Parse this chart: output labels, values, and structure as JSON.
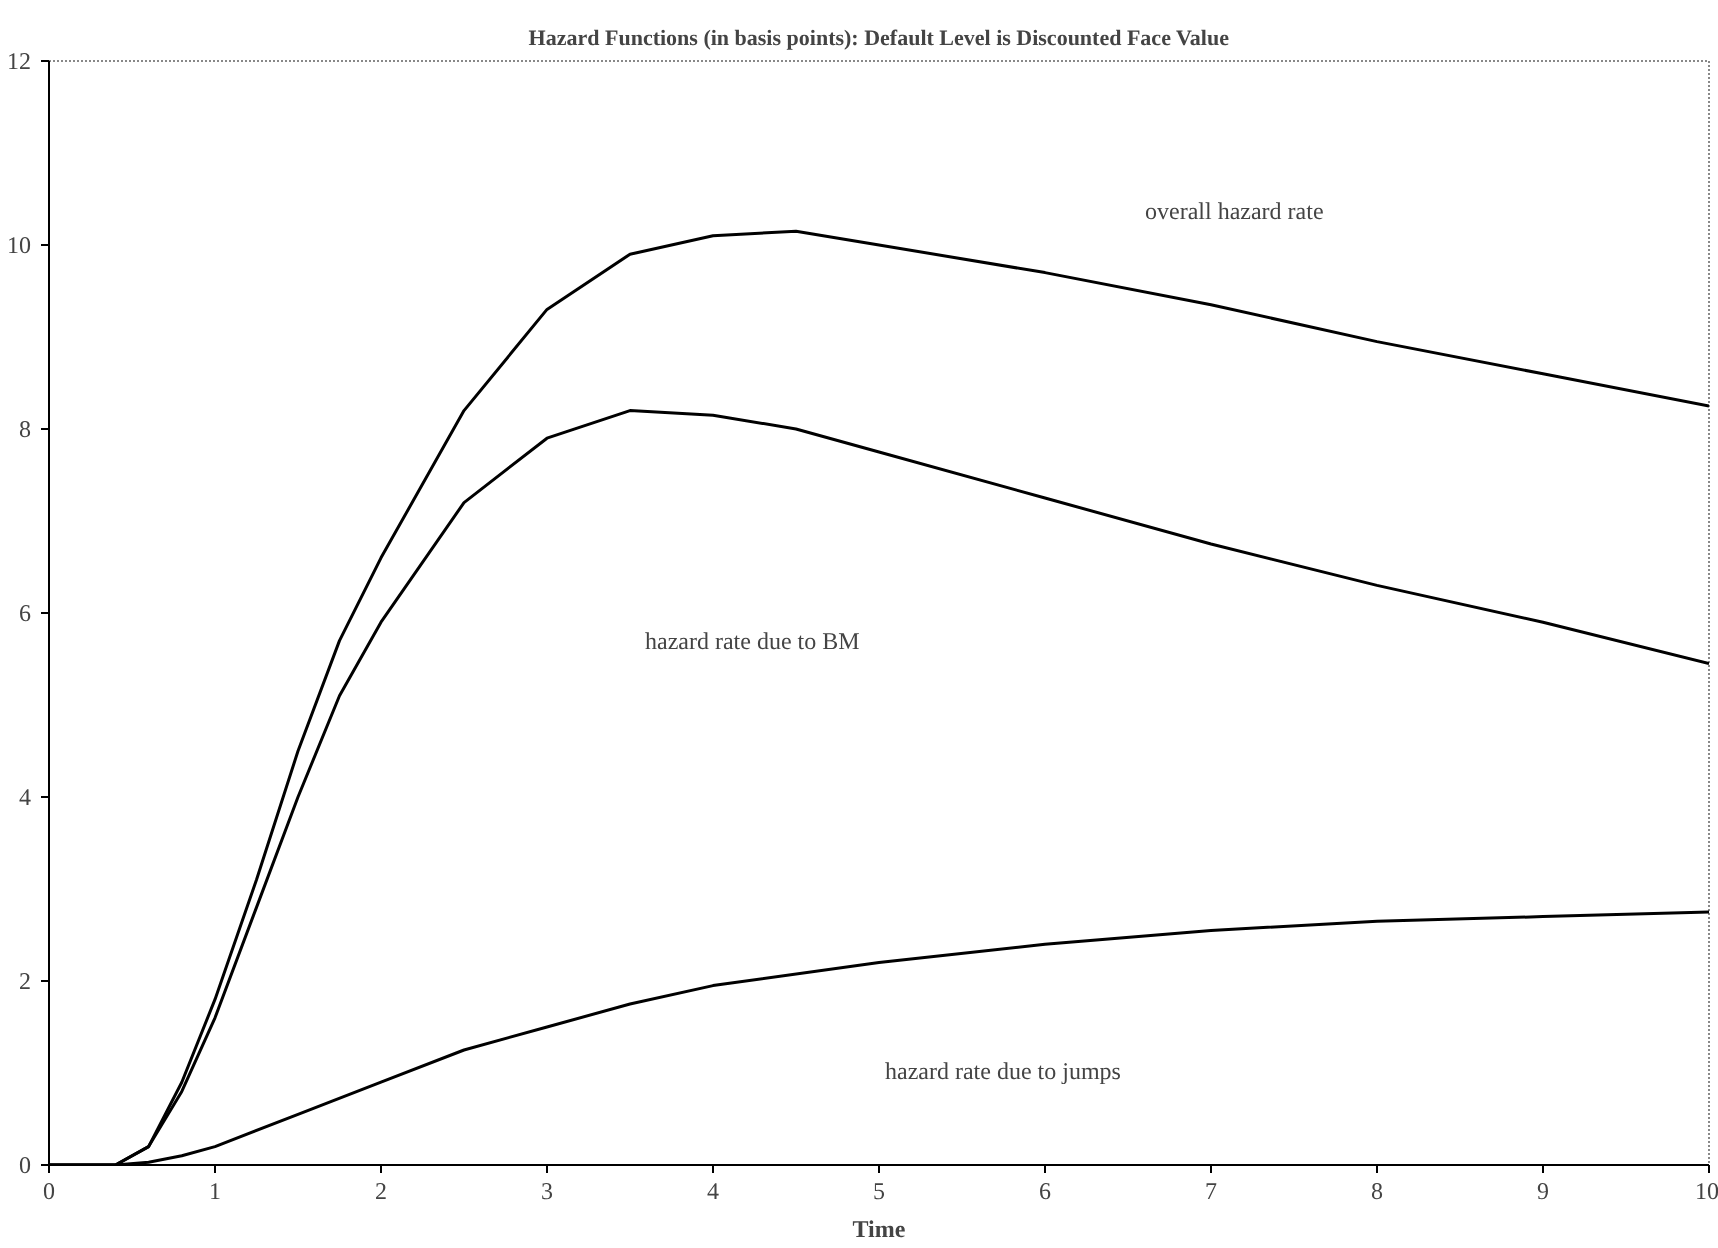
{
  "chart_data": {
    "type": "line",
    "title": "Hazard Functions (in basis points): Default Level is Discounted Face Value",
    "xlabel": "Time",
    "xlim": [
      0,
      10
    ],
    "ylim": [
      0,
      12
    ],
    "xticks": [
      0,
      1,
      2,
      3,
      4,
      5,
      6,
      7,
      8,
      9,
      10
    ],
    "yticks": [
      0,
      2,
      4,
      6,
      8,
      10,
      12
    ],
    "grid": false,
    "series": [
      {
        "color": "#000000",
        "x": [
          0,
          0.4,
          0.6,
          0.8,
          1,
          1.25,
          1.5,
          1.75,
          2,
          2.5,
          3,
          3.5,
          4,
          4.5,
          5,
          6,
          7,
          8,
          9,
          10
        ],
        "values": [
          0,
          0,
          0.2,
          0.9,
          1.8,
          3.1,
          4.5,
          5.7,
          6.6,
          8.2,
          9.3,
          9.9,
          10.1,
          10.15,
          10.0,
          9.7,
          9.35,
          8.95,
          8.6,
          8.25
        ]
      },
      {
        "color": "#000000",
        "x": [
          0,
          0.4,
          0.6,
          0.8,
          1,
          1.25,
          1.5,
          1.75,
          2,
          2.5,
          3,
          3.5,
          4,
          4.5,
          5,
          6,
          7,
          8,
          9,
          10
        ],
        "values": [
          0,
          0,
          0.2,
          0.8,
          1.6,
          2.8,
          4.0,
          5.1,
          5.9,
          7.2,
          7.9,
          8.2,
          8.15,
          8.0,
          7.75,
          7.25,
          6.75,
          6.3,
          5.9,
          5.45
        ]
      },
      {
        "color": "#000000",
        "x": [
          0,
          0.4,
          0.6,
          0.8,
          1,
          1.5,
          2,
          2.5,
          3,
          3.5,
          4,
          5,
          6,
          7,
          8,
          9,
          10
        ],
        "values": [
          0,
          0,
          0.03,
          0.1,
          0.2,
          0.55,
          0.9,
          1.25,
          1.5,
          1.75,
          1.95,
          2.2,
          2.4,
          2.55,
          2.65,
          2.7,
          2.75
        ]
      }
    ],
    "annotations": [
      "overall hazard rate",
      "hazard rate due to BM",
      "hazard rate due to jumps"
    ]
  }
}
